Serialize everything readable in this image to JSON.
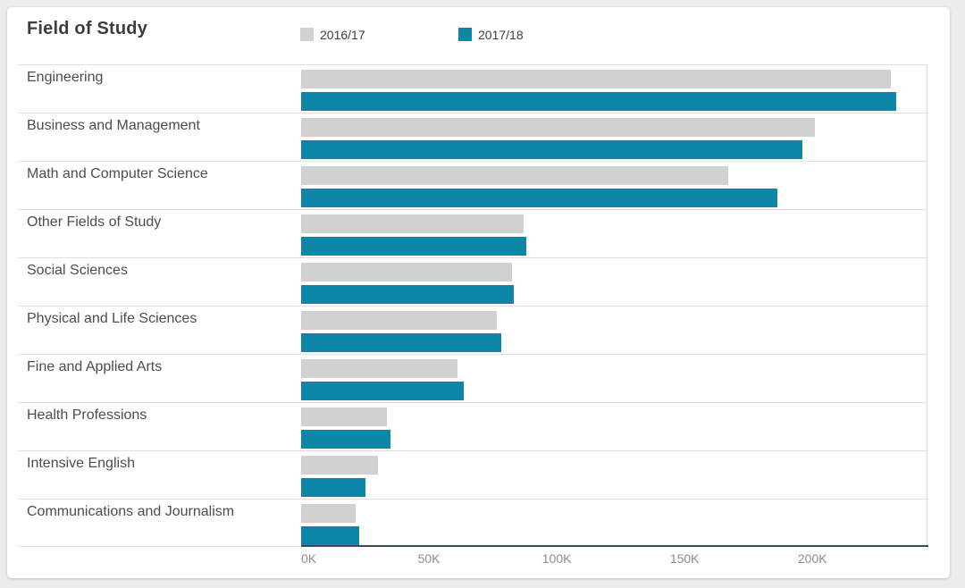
{
  "header": {
    "title": "Field of Study"
  },
  "legend": {
    "items": [
      {
        "label": "2016/17",
        "color": "#d1d1d1"
      },
      {
        "label": "2017/18",
        "color": "#0d86a8"
      }
    ]
  },
  "chart_data": {
    "type": "bar",
    "orientation": "horizontal",
    "title": "Field of Study",
    "unit": "thousands of students",
    "categories": [
      "Engineering",
      "Business and Management",
      "Math and Computer Science",
      "Other Fields of Study",
      "Social Sciences",
      "Physical and Life Sciences",
      "Fine and Applied Arts",
      "Health Professions",
      "Intensive English",
      "Communications and Journalism"
    ],
    "series": [
      {
        "name": "2016/17",
        "color": "#d1d1d1",
        "values": [
          230.7,
          200.8,
          167.2,
          86.9,
          82.4,
          76.5,
          61.1,
          33.5,
          30.0,
          21.3
        ]
      },
      {
        "name": "2017/18",
        "color": "#0d86a8",
        "values": [
          232.7,
          196.1,
          186.2,
          88.0,
          83.1,
          78.2,
          63.5,
          34.9,
          25.1,
          22.7
        ]
      }
    ],
    "xlabel": "",
    "ylabel": "",
    "x_ticks": [
      "0K",
      "50K",
      "100K",
      "150K",
      "200K"
    ],
    "x_tick_values": [
      0,
      50,
      100,
      150,
      200
    ],
    "xlim": [
      0,
      245
    ],
    "grid": "right-boundary-only",
    "legend_position": "top",
    "colors": {
      "axis_line": "#3b4a5a",
      "separator": "#e0e0e0",
      "tick_label": "#8d8d8d",
      "category_label": "#4d4d4d",
      "title": "#3d3d3d",
      "card_background": "#ffffff",
      "page_background": "#ececec"
    }
  }
}
